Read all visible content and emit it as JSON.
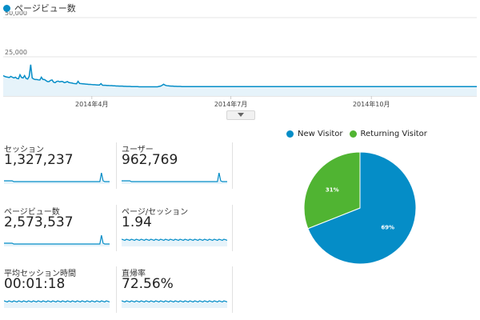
{
  "pageviews_chart": {
    "legend_label": "ページビュー数",
    "series_color": "#058dc7",
    "fill_color": "#e6f3fa",
    "y_ticks": [
      {
        "label": "50,000",
        "value": 50000
      },
      {
        "label": "25,000",
        "value": 25000
      }
    ],
    "x_labels": [
      {
        "label": "2014年4月",
        "index": 58
      },
      {
        "label": "2014年7月",
        "index": 149
      },
      {
        "label": "2014年10月",
        "index": 241
      }
    ],
    "chart_data": {
      "type": "area",
      "ylim": [
        0,
        50000
      ],
      "series": [
        {
          "values": [
            13000,
            12500,
            12200,
            12000,
            11800,
            12500,
            12000,
            11500,
            12000,
            11200,
            11000,
            13500,
            11800,
            11500,
            13000,
            11200,
            10800,
            12500,
            20000,
            11500,
            10800,
            10500,
            10500,
            10300,
            10200,
            12000,
            10500,
            10500,
            9800,
            9200,
            9200,
            10000,
            10200,
            8800,
            8500,
            9300,
            9500,
            9000,
            9300,
            9200,
            8500,
            8800,
            9200,
            8600,
            8400,
            8300,
            8000,
            7900,
            7800,
            9400,
            8000,
            7900,
            7800,
            7700,
            7600,
            7500,
            7400,
            7400,
            7300,
            7200,
            7200,
            7100,
            7000,
            7000,
            7900,
            6900,
            6800,
            6800,
            6700,
            6700,
            6600,
            6600,
            6500,
            6500,
            6400,
            6400,
            6300,
            6300,
            6300,
            6200,
            6200,
            6100,
            6100,
            6100,
            6000,
            6000,
            6000,
            6000,
            6000,
            5900,
            5900,
            5900,
            5900,
            5900,
            5900,
            5900,
            5900,
            5900,
            5900,
            5900,
            5900,
            5900,
            6100,
            6300,
            6800,
            7500,
            6900,
            6600,
            6500,
            6400,
            6300,
            6300,
            6200,
            6200,
            6100,
            6100,
            6100,
            6000,
            6000,
            6000,
            6000,
            6000,
            6000,
            6000,
            6000,
            6000,
            6000,
            6000,
            6000,
            6000,
            6000,
            6000,
            6000,
            6000,
            6000,
            6000,
            6000,
            6000,
            6000,
            6000,
            6000,
            6000,
            6000,
            6000,
            6000,
            6000,
            6000,
            6000,
            6000,
            6000,
            6000,
            6000,
            6000,
            6000,
            6000,
            6000,
            6000,
            6000,
            6000,
            6000,
            6000,
            6000,
            6000,
            6000,
            6000,
            6000,
            6000,
            6000,
            6000,
            6000,
            6000,
            6000,
            6000,
            6000,
            6000,
            6000,
            6000,
            6000,
            6000,
            6000,
            6000,
            6000,
            6000,
            6000,
            6000,
            6000,
            6000,
            6000,
            6000,
            6000,
            6000,
            6000,
            6000,
            6000,
            6000,
            6000,
            6000,
            6000,
            6000,
            6000,
            6000,
            6000,
            6000,
            6000,
            6000,
            6000,
            6000,
            6000,
            6000,
            6000,
            6000,
            6000,
            6000,
            6000,
            6000,
            6000,
            6000,
            6000,
            6000,
            6000,
            6000,
            6000,
            6000,
            6000,
            6000,
            6000,
            6000,
            6000,
            6000,
            6000,
            6000,
            6000,
            6000,
            6000,
            6000,
            6000,
            6000,
            6000,
            6000,
            6000,
            6000,
            6000,
            6000,
            6000,
            6000,
            6000,
            6000,
            6000,
            6000,
            6000,
            6000,
            6000,
            6000,
            6000,
            6000,
            6000,
            6000,
            6000,
            6000,
            6000,
            6000,
            6000,
            6000,
            6000,
            6000,
            6000,
            6000,
            6000,
            6000,
            6000,
            6000,
            6000,
            6000,
            6000,
            6000,
            6000,
            6000,
            6000,
            6000,
            6000,
            6000,
            6000,
            6000,
            6000,
            6000,
            6000,
            6000,
            6000,
            6000,
            6000,
            6000,
            6000,
            6000,
            6000,
            6000,
            6000,
            6000,
            6000,
            6000,
            6000,
            6000,
            6000,
            6000,
            6000,
            6000,
            6000,
            6000,
            6000,
            6000,
            6000,
            6000
          ]
        }
      ]
    }
  },
  "metrics": [
    {
      "label": "セッション",
      "value": "1,327,237"
    },
    {
      "label": "ユーザー",
      "value": "962,769"
    },
    {
      "label": "ページビュー数",
      "value": "2,573,537"
    },
    {
      "label": "ページ/セッション",
      "value": "1.94"
    },
    {
      "label": "平均セッション時間",
      "value": "00:01:18"
    },
    {
      "label": "直帰率",
      "value": "72.56%"
    }
  ],
  "visitor_pie": {
    "chart_data": {
      "type": "pie",
      "categories": [
        "New Visitor",
        "Returning Visitor"
      ],
      "values": [
        69,
        31
      ],
      "value_labels": [
        "69%",
        "31%"
      ],
      "colors": [
        "#058dc7",
        "#50b432"
      ]
    }
  }
}
